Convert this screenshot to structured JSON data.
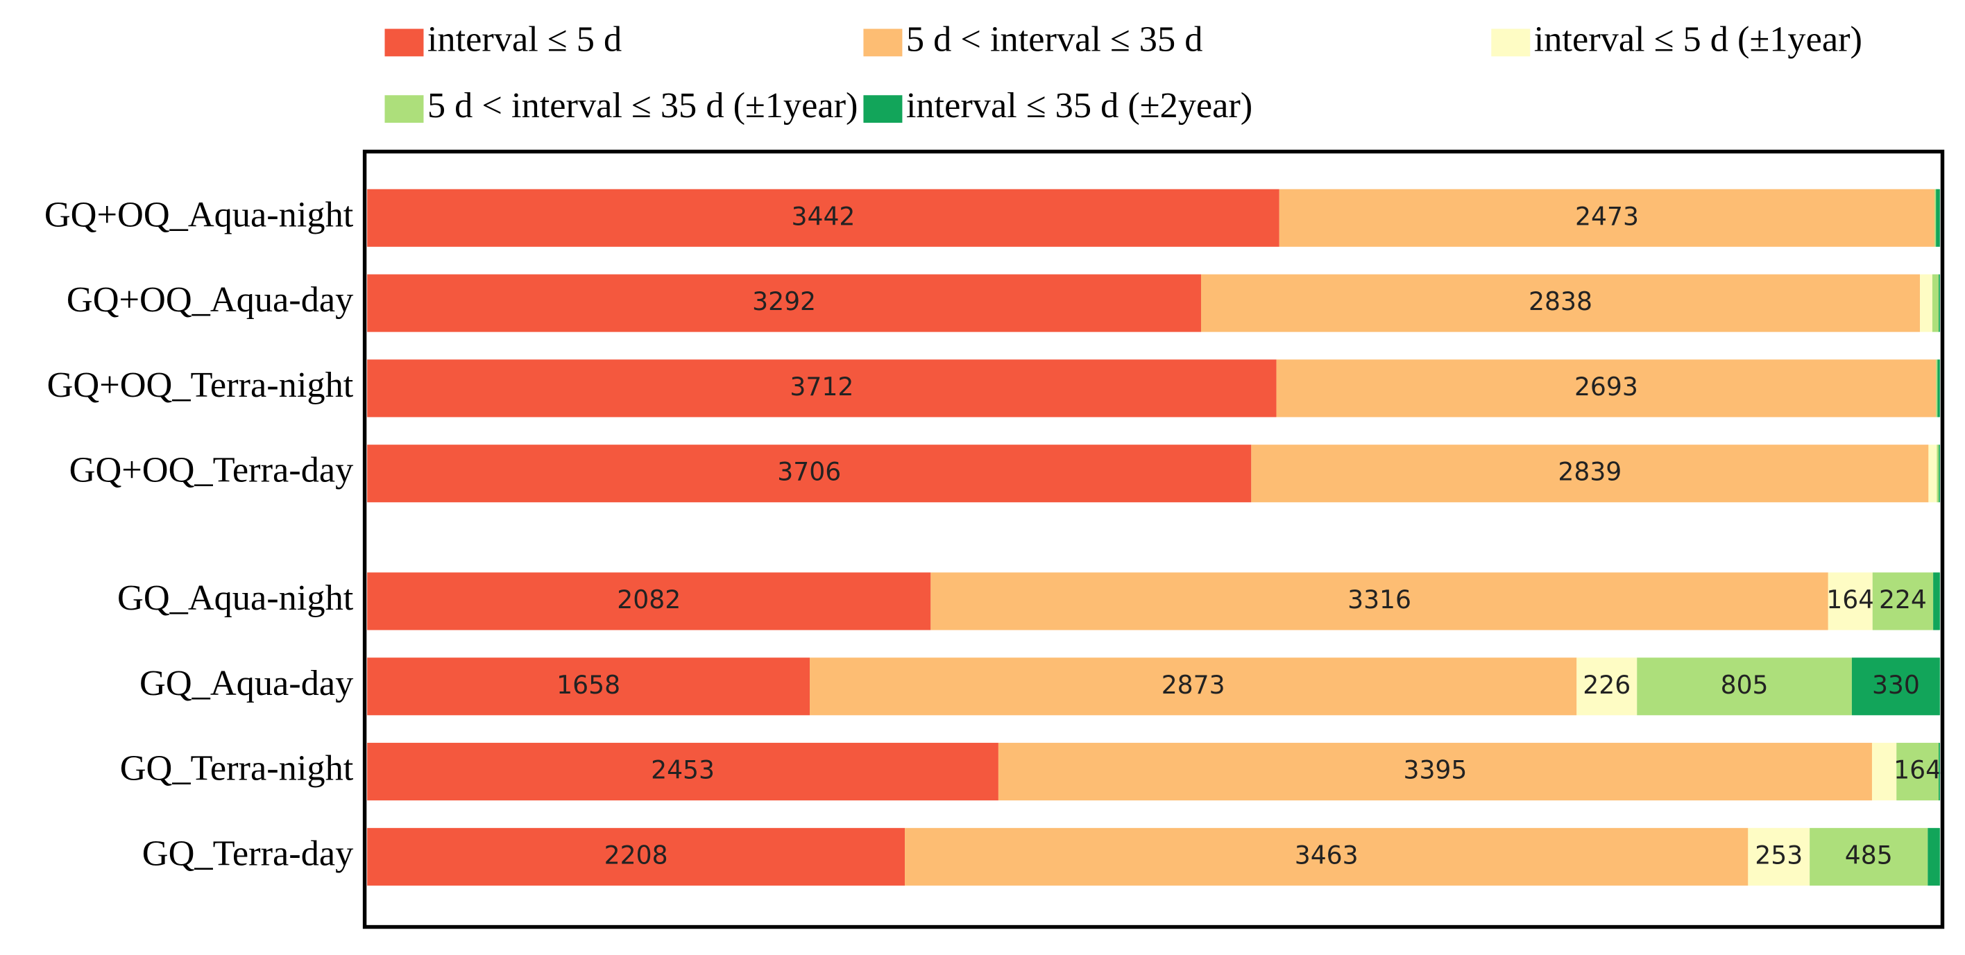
{
  "chart_data": {
    "type": "stacked-bar-100",
    "categories": [
      "GQ+OQ_Aqua-night",
      "GQ+OQ_Aqua-day",
      "GQ+OQ_Terra-night",
      "GQ+OQ_Terra-day",
      "GQ_Aqua-night",
      "GQ_Aqua-day",
      "GQ_Terra-night",
      "GQ_Terra-day"
    ],
    "series": [
      {
        "name": "interval ≤ 5 d",
        "color": "#f4583e",
        "values": [
          3442,
          3292,
          3712,
          3706,
          2082,
          1658,
          2453,
          2208
        ]
      },
      {
        "name": "5 d < interval ≤ 35 d",
        "color": "#fdbd73",
        "values": [
          2473,
          2838,
          2693,
          2839,
          3316,
          2873,
          3395,
          3463
        ]
      },
      {
        "name": "interval ≤ 5 d (±1year)",
        "color": "#fefcc4",
        "values": [
          0,
          49,
          0,
          35,
          164,
          226,
          95,
          253
        ]
      },
      {
        "name": "5 d < interval ≤ 35 d (±1year)",
        "color": "#addf7b",
        "values": [
          5,
          25,
          6,
          8,
          224,
          805,
          164,
          485
        ]
      },
      {
        "name": "interval ≤ 35 d (±2year)",
        "color": "#12a55a",
        "values": [
          15,
          5,
          10,
          5,
          25,
          330,
          5,
          50
        ]
      }
    ]
  }
}
